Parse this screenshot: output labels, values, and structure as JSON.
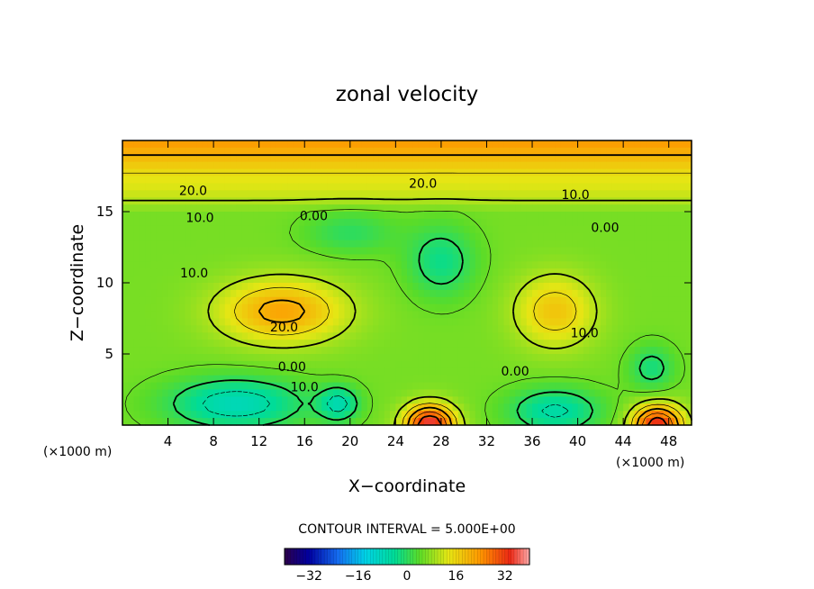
{
  "chart_data": {
    "type": "heatmap",
    "title": "zonal velocity",
    "xlabel": "X−coordinate",
    "ylabel": "Z−coordinate",
    "x_unit_left": "(×1000 m)",
    "x_unit_right": "(×1000 m)",
    "x_ticks": [
      "4",
      "8",
      "12",
      "16",
      "20",
      "24",
      "28",
      "32",
      "36",
      "40",
      "44",
      "48"
    ],
    "x_tick_values": [
      4,
      8,
      12,
      16,
      20,
      24,
      28,
      32,
      36,
      40,
      44,
      48
    ],
    "y_ticks": [
      "5",
      "10",
      "15"
    ],
    "y_tick_values": [
      5,
      10,
      15
    ],
    "xlim": [
      0,
      50
    ],
    "ylim": [
      0,
      20
    ],
    "contour_interval_text": "CONTOUR INTERVAL = 5.000E+00",
    "contour_labels": [
      {
        "text": "20.0",
        "x": 6.2,
        "y": 16.5
      },
      {
        "text": "20.0",
        "x": 26.4,
        "y": 17.0
      },
      {
        "text": "10.0",
        "x": 39.8,
        "y": 16.2
      },
      {
        "text": "10.0",
        "x": 6.8,
        "y": 14.6
      },
      {
        "text": "0.00",
        "x": 16.8,
        "y": 14.7
      },
      {
        "text": "0.00",
        "x": 42.4,
        "y": 13.9
      },
      {
        "text": "10.0",
        "x": 6.3,
        "y": 10.7
      },
      {
        "text": "20.0",
        "x": 14.2,
        "y": 6.9
      },
      {
        "text": "10.0",
        "x": 40.6,
        "y": 6.5
      },
      {
        "text": "0.00",
        "x": 14.9,
        "y": 4.1
      },
      {
        "text": "0.00",
        "x": 34.5,
        "y": 3.8
      },
      {
        "text": "10.0",
        "x": 16.0,
        "y": 2.7
      }
    ],
    "colorbar": {
      "ticks": [
        "−32",
        "−16",
        "0",
        "16",
        "32"
      ],
      "tick_values": [
        -32,
        -16,
        0,
        16,
        32
      ],
      "range": [
        -40,
        40
      ]
    },
    "field_features": [
      {
        "kind": "max",
        "x": 14,
        "y": 8,
        "amp": 16,
        "sx": 5.5,
        "sy": 2.2
      },
      {
        "kind": "max",
        "x": 38,
        "y": 8,
        "amp": 12,
        "sx": 3.5,
        "sy": 2.5
      },
      {
        "kind": "max",
        "x": 27,
        "y": 0,
        "amp": 30,
        "sx": 2.2,
        "sy": 1.4
      },
      {
        "kind": "max",
        "x": 47,
        "y": 0,
        "amp": 28,
        "sx": 2.2,
        "sy": 1.4
      },
      {
        "kind": "min",
        "x": 10,
        "y": 1.5,
        "amp": -14,
        "sx": 6,
        "sy": 1.8
      },
      {
        "kind": "min",
        "x": 19,
        "y": 1.5,
        "amp": -12,
        "sx": 1.8,
        "sy": 1.2
      },
      {
        "kind": "min",
        "x": 38,
        "y": 1,
        "amp": -12,
        "sx": 4,
        "sy": 1.6
      },
      {
        "kind": "min",
        "x": 46.5,
        "y": 4,
        "amp": -8,
        "sx": 2,
        "sy": 1.6
      },
      {
        "kind": "min",
        "x": 28,
        "y": 11.5,
        "amp": -9,
        "sx": 3,
        "sy": 2.5
      },
      {
        "kind": "min",
        "x": 20,
        "y": 13.5,
        "amp": -6,
        "sx": 4,
        "sy": 1.5
      }
    ]
  }
}
